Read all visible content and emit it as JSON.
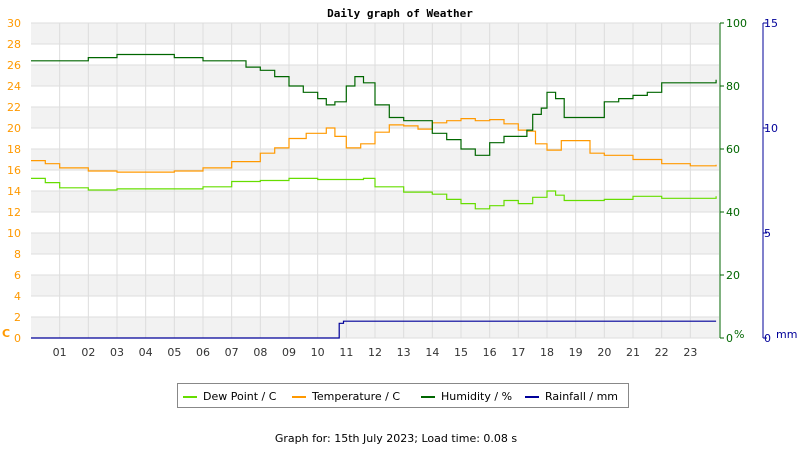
{
  "chart_data": {
    "type": "line",
    "title": "Daily graph of Weather",
    "footer": "Graph for: 15th July 2023; Load time: 0.08 s",
    "x_ticks": [
      "01",
      "02",
      "03",
      "04",
      "05",
      "06",
      "07",
      "08",
      "09",
      "10",
      "11",
      "12",
      "13",
      "14",
      "15",
      "16",
      "17",
      "18",
      "19",
      "20",
      "21",
      "22",
      "23"
    ],
    "xlim": [
      0,
      24
    ],
    "axes": {
      "left": {
        "unit": "C",
        "ylim": [
          0,
          30
        ],
        "ticks": [
          "0",
          "2",
          "4",
          "6",
          "8",
          "10",
          "12",
          "14",
          "16",
          "18",
          "20",
          "22",
          "24",
          "26",
          "28",
          "30"
        ],
        "color": "#ff9900"
      },
      "right1": {
        "unit": "%",
        "ylim": [
          0,
          100
        ],
        "ticks": [
          "0",
          "20",
          "40",
          "60",
          "80",
          "100"
        ],
        "color": "#006600"
      },
      "right2": {
        "unit": "mm",
        "ylim": [
          0,
          15
        ],
        "ticks": [
          "0",
          "5",
          "10",
          "15"
        ],
        "color": "#000099"
      }
    },
    "grid": true,
    "legend_position": "bottom",
    "series": [
      {
        "name": "Dew Point / C",
        "axis": "left",
        "color": "#66dd00",
        "x": [
          0,
          0.5,
          1,
          2,
          3,
          4,
          5,
          6,
          7,
          8,
          9,
          10,
          11,
          11.6,
          12,
          13,
          14,
          14.5,
          15,
          15.5,
          16,
          16.5,
          17,
          17.5,
          18,
          18.3,
          18.6,
          19,
          20,
          21,
          22,
          23,
          23.9
        ],
        "y": [
          15.2,
          14.8,
          14.3,
          14.1,
          14.2,
          14.2,
          14.2,
          14.4,
          14.9,
          15.0,
          15.2,
          15.1,
          15.1,
          15.2,
          14.4,
          13.9,
          13.7,
          13.2,
          12.8,
          12.3,
          12.6,
          13.1,
          12.8,
          13.4,
          14.0,
          13.6,
          13.1,
          13.1,
          13.2,
          13.5,
          13.3,
          13.3,
          13.5
        ]
      },
      {
        "name": "Temperature / C",
        "axis": "left",
        "color": "#ff9900",
        "x": [
          0,
          0.5,
          1,
          2,
          3,
          4,
          5,
          6,
          7,
          8,
          8.5,
          9,
          9.6,
          10.3,
          10.6,
          11,
          11.5,
          12,
          12.5,
          13,
          13.5,
          14,
          14.5,
          15,
          15.5,
          16,
          16.5,
          17,
          17.3,
          17.6,
          18,
          18.5,
          19,
          19.5,
          20,
          21,
          22,
          23,
          23.9
        ],
        "y": [
          16.9,
          16.6,
          16.2,
          15.9,
          15.8,
          15.8,
          15.9,
          16.2,
          16.8,
          17.6,
          18.1,
          19.0,
          19.5,
          20.0,
          19.2,
          18.1,
          18.5,
          19.6,
          20.3,
          20.2,
          19.9,
          20.5,
          20.7,
          20.9,
          20.7,
          20.8,
          20.4,
          19.8,
          19.7,
          18.5,
          17.9,
          18.8,
          18.8,
          17.6,
          17.4,
          17.0,
          16.6,
          16.4,
          16.5
        ]
      },
      {
        "name": "Humidity / %",
        "axis": "right1",
        "color": "#006600",
        "x": [
          0,
          0.7,
          1.3,
          2,
          3,
          4,
          5,
          6,
          7,
          7.5,
          8,
          8.5,
          9,
          9.5,
          10,
          10.3,
          10.6,
          11,
          11.3,
          11.6,
          12,
          12.5,
          13,
          13.5,
          14,
          14.5,
          15,
          15.5,
          16,
          16.5,
          17,
          17.3,
          17.5,
          17.8,
          18,
          18.3,
          18.6,
          19,
          19.5,
          20,
          20.5,
          21,
          21.5,
          22,
          23,
          23.9
        ],
        "y": [
          88,
          88,
          88,
          89,
          90,
          90,
          89,
          88,
          88,
          86,
          85,
          83,
          80,
          78,
          76,
          74,
          75,
          80,
          83,
          81,
          74,
          70,
          69,
          69,
          65,
          63,
          60,
          58,
          62,
          64,
          64,
          66,
          71,
          73,
          78,
          76,
          70,
          70,
          70,
          75,
          76,
          77,
          78,
          81,
          81,
          82
        ]
      },
      {
        "name": "Rainfall / mm",
        "axis": "right2",
        "color": "#000099",
        "x": [
          0,
          10.7,
          10.75,
          10.9,
          23.9
        ],
        "y": [
          0,
          0,
          0.7,
          0.8,
          0.8
        ]
      }
    ]
  }
}
